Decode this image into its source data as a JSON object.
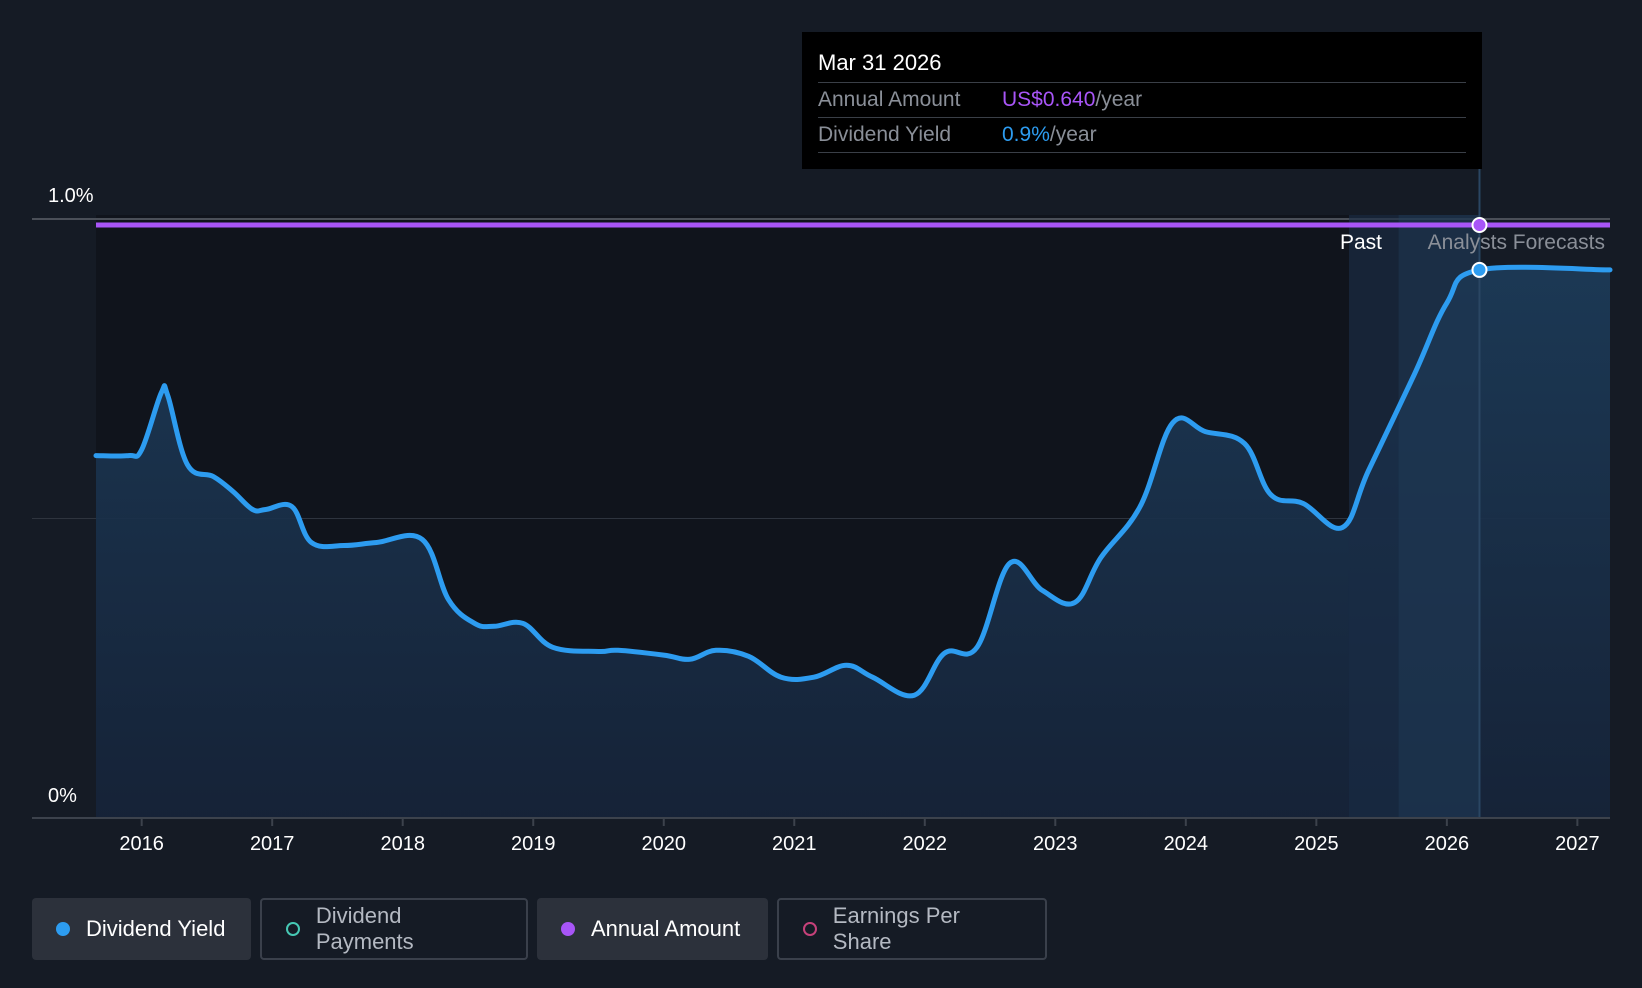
{
  "tooltip": {
    "date": "Mar 31 2026",
    "annual_amount_label": "Annual Amount",
    "annual_amount_value": "US$0.640",
    "annual_amount_unit": "/year",
    "dividend_yield_label": "Dividend Yield",
    "dividend_yield_value": "0.9%",
    "dividend_yield_unit": "/year"
  },
  "labels": {
    "past": "Past",
    "forecast": "Analysts Forecasts"
  },
  "legend": [
    {
      "label": "Dividend Yield",
      "color": "#2d9cf0",
      "active": true
    },
    {
      "label": "Dividend Payments",
      "color": "#46c8b4",
      "active": false
    },
    {
      "label": "Annual Amount",
      "color": "#a855f7",
      "active": true
    },
    {
      "label": "Earnings Per Share",
      "color": "#c6417a",
      "active": false
    }
  ],
  "chart_data": {
    "type": "line",
    "xlim": [
      2015.65,
      2027.25
    ],
    "ylim": [
      0,
      1.0
    ],
    "y_ticks": [
      "0%",
      "1.0%"
    ],
    "x_ticks": [
      "2016",
      "2017",
      "2018",
      "2019",
      "2020",
      "2021",
      "2022",
      "2023",
      "2024",
      "2025",
      "2026",
      "2027"
    ],
    "grid": true,
    "past_until": 2025.25,
    "forecast_from": 2025.63,
    "tooltip_x": 2026.25,
    "colors": {
      "yield": "#2d9cf0",
      "annual": "#a855f7"
    },
    "series": [
      {
        "name": "Dividend Yield",
        "unit": "%",
        "points": [
          [
            2015.65,
            0.605
          ],
          [
            2015.9,
            0.605
          ],
          [
            2016.0,
            0.615
          ],
          [
            2016.15,
            0.71
          ],
          [
            2016.2,
            0.705
          ],
          [
            2016.35,
            0.59
          ],
          [
            2016.55,
            0.57
          ],
          [
            2016.7,
            0.545
          ],
          [
            2016.85,
            0.515
          ],
          [
            2016.95,
            0.515
          ],
          [
            2017.15,
            0.52
          ],
          [
            2017.3,
            0.46
          ],
          [
            2017.55,
            0.455
          ],
          [
            2017.8,
            0.46
          ],
          [
            2018.15,
            0.465
          ],
          [
            2018.35,
            0.365
          ],
          [
            2018.55,
            0.325
          ],
          [
            2018.7,
            0.32
          ],
          [
            2018.92,
            0.325
          ],
          [
            2019.15,
            0.285
          ],
          [
            2019.5,
            0.278
          ],
          [
            2019.65,
            0.28
          ],
          [
            2020.0,
            0.272
          ],
          [
            2020.2,
            0.265
          ],
          [
            2020.4,
            0.28
          ],
          [
            2020.65,
            0.27
          ],
          [
            2020.9,
            0.235
          ],
          [
            2021.15,
            0.235
          ],
          [
            2021.4,
            0.255
          ],
          [
            2021.6,
            0.235
          ],
          [
            2021.92,
            0.205
          ],
          [
            2022.15,
            0.275
          ],
          [
            2022.4,
            0.285
          ],
          [
            2022.65,
            0.425
          ],
          [
            2022.9,
            0.38
          ],
          [
            2023.15,
            0.36
          ],
          [
            2023.35,
            0.435
          ],
          [
            2023.65,
            0.52
          ],
          [
            2023.9,
            0.66
          ],
          [
            2024.15,
            0.645
          ],
          [
            2024.45,
            0.625
          ],
          [
            2024.65,
            0.54
          ],
          [
            2024.9,
            0.525
          ],
          [
            2025.2,
            0.485
          ],
          [
            2025.4,
            0.58
          ],
          [
            2025.75,
            0.74
          ],
          [
            2026.0,
            0.86
          ],
          [
            2026.25,
            0.915
          ],
          [
            2027.25,
            0.915
          ]
        ]
      },
      {
        "name": "Annual Amount",
        "points": [
          [
            2015.65,
            0.99
          ],
          [
            2027.25,
            0.99
          ]
        ]
      }
    ]
  }
}
